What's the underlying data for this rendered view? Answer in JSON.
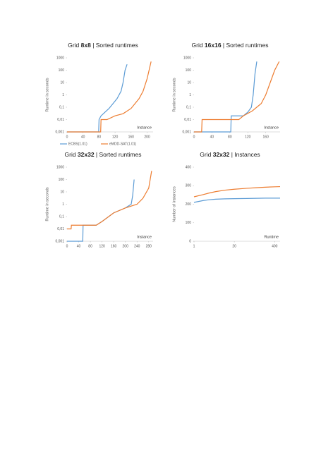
{
  "chart_data": [
    {
      "type": "line",
      "title": [
        "Grid ",
        "8x8",
        " | Sorted runtimes"
      ],
      "ylabel": "Runtime in seconds",
      "xlabel": "Instance",
      "xlim": [
        0,
        215
      ],
      "xticks": [
        0,
        40,
        80,
        120,
        160,
        200
      ],
      "ylim": [
        0.001,
        1000
      ],
      "ylog": true,
      "yticks": [
        {
          "value": 0.001,
          "label": "0,001"
        },
        {
          "value": 0.01,
          "label": "0,01"
        },
        {
          "value": 0.1,
          "label": "0,1"
        },
        1,
        10,
        100,
        1000
      ],
      "legend": "bottom",
      "series": [
        {
          "name": "ECBS(1.01)",
          "color": "#5b9bd5",
          "x": [
            0,
            79,
            80,
            85,
            95,
            105,
            115,
            125,
            135,
            140,
            145,
            150
          ],
          "values": [
            0.001,
            0.001,
            0.01,
            0.02,
            0.04,
            0.08,
            0.2,
            0.5,
            2,
            10,
            100,
            300
          ]
        },
        {
          "name": "eMDD-SAT(1.01)",
          "color": "#ed7d31",
          "x": [
            0,
            84,
            85,
            100,
            120,
            140,
            160,
            170,
            180,
            190,
            200,
            205,
            210
          ],
          "values": [
            0.001,
            0.001,
            0.01,
            0.01,
            0.02,
            0.03,
            0.08,
            0.2,
            0.5,
            2,
            20,
            100,
            500
          ]
        }
      ]
    },
    {
      "type": "line",
      "title": [
        "Grid ",
        "16x16",
        " | Sorted runtimes"
      ],
      "ylabel": "Runtime in seconds",
      "xlabel": "Instance",
      "xlim": [
        0,
        192
      ],
      "xticks": [
        0,
        40,
        80,
        120,
        160
      ],
      "ylim": [
        0.001,
        1000
      ],
      "ylog": true,
      "yticks": [
        {
          "value": 0.001,
          "label": "0,001"
        },
        {
          "value": 0.01,
          "label": "0,01"
        },
        {
          "value": 0.1,
          "label": "0,1"
        },
        1,
        10,
        100,
        1000
      ],
      "series": [
        {
          "color": "#5b9bd5",
          "x": [
            0,
            82,
            83,
            110,
            120,
            128,
            132,
            136,
            140
          ],
          "values": [
            0.001,
            0.001,
            0.02,
            0.02,
            0.04,
            0.1,
            1,
            50,
            500
          ]
        },
        {
          "color": "#ed7d31",
          "x": [
            0,
            17,
            18,
            100,
            110,
            130,
            150,
            160,
            170,
            180,
            190
          ],
          "values": [
            0.001,
            0.001,
            0.01,
            0.01,
            0.02,
            0.05,
            0.2,
            1,
            10,
            100,
            500
          ]
        }
      ]
    },
    {
      "type": "line",
      "title": [
        "Grid ",
        "32x32",
        " | Sorted runtimes"
      ],
      "ylabel": "Runtime in seconds",
      "xlabel": "Instance",
      "xlim": [
        0,
        295
      ],
      "xticks": [
        0,
        40,
        80,
        120,
        160,
        200,
        240,
        280
      ],
      "ylim": [
        0.001,
        1000
      ],
      "ylog": true,
      "yticks": [
        {
          "value": 0.001,
          "label": "0,001"
        },
        {
          "value": 0.01,
          "label": "0,01"
        },
        {
          "value": 0.1,
          "label": "0,1"
        },
        1,
        10,
        100,
        1000
      ],
      "series": [
        {
          "color": "#5b9bd5",
          "x": [
            0,
            54,
            55,
            100,
            120,
            160,
            200,
            220,
            225,
            230
          ],
          "values": [
            0.001,
            0.001,
            0.02,
            0.02,
            0.04,
            0.2,
            0.5,
            1,
            5,
            100
          ]
        },
        {
          "color": "#ed7d31",
          "x": [
            0,
            14,
            15,
            100,
            120,
            160,
            200,
            240,
            260,
            280,
            290
          ],
          "values": [
            0.01,
            0.01,
            0.02,
            0.02,
            0.04,
            0.2,
            0.5,
            1,
            3,
            20,
            500
          ]
        }
      ]
    },
    {
      "type": "line",
      "title": [
        "Grid ",
        "32x32",
        " | Instances"
      ],
      "ylabel": "Number of instances",
      "xlabel": "Runtime",
      "xlim": [
        1,
        600
      ],
      "xlog": true,
      "xticks": [
        1,
        20,
        400
      ],
      "ylim": [
        0,
        400
      ],
      "yticks": [
        0,
        100,
        200,
        300,
        400
      ],
      "series": [
        {
          "color": "#5b9bd5",
          "x": [
            1,
            2,
            3,
            5,
            10,
            20,
            50,
            100,
            200,
            400,
            600
          ],
          "values": [
            210,
            220,
            224,
            227,
            229,
            230,
            231,
            232,
            233,
            233,
            233
          ]
        },
        {
          "color": "#ed7d31",
          "x": [
            1,
            2,
            3,
            5,
            10,
            20,
            50,
            100,
            200,
            400,
            600
          ],
          "values": [
            240,
            252,
            260,
            268,
            276,
            281,
            286,
            289,
            292,
            294,
            295
          ]
        }
      ]
    }
  ]
}
